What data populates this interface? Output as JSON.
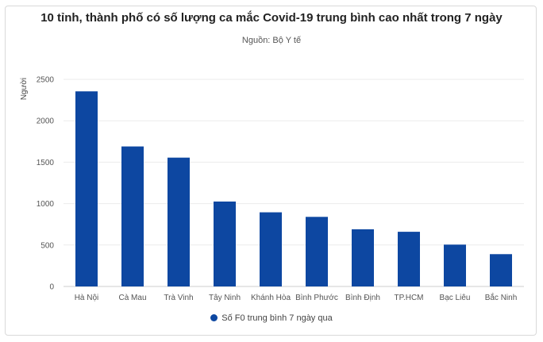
{
  "chart_data": {
    "type": "bar",
    "title": "10 tỉnh, thành phố có số lượng ca mắc Covid-19 trung bình cao nhất trong 7 ngày",
    "subtitle": "Nguồn: Bộ Y tế",
    "xlabel": "",
    "ylabel": "Người",
    "ylim": [
      0,
      2500
    ],
    "yticks": [
      0,
      500,
      1000,
      1500,
      2000,
      2500
    ],
    "grid": true,
    "legend_position": "bottom",
    "categories": [
      "Hà Nội",
      "Cà Mau",
      "Trà Vinh",
      "Tây Ninh",
      "Khánh Hòa",
      "Bình Phước",
      "Bình Định",
      "TP.HCM",
      "Bạc Liêu",
      "Bắc Ninh"
    ],
    "series": [
      {
        "name": "Số F0 trung bình 7 ngày qua",
        "color": "#0d47a1",
        "values": [
          2355,
          1690,
          1555,
          1025,
          895,
          840,
          690,
          660,
          505,
          390
        ]
      }
    ]
  }
}
